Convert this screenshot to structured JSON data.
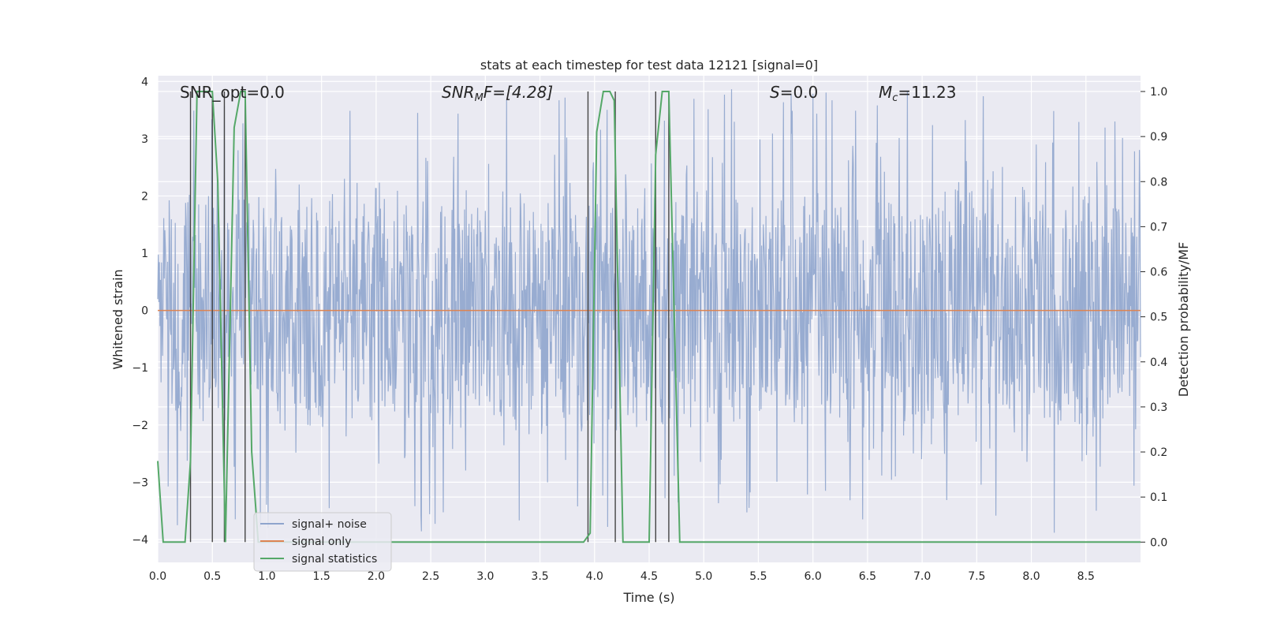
{
  "chart_data": {
    "type": "line",
    "title": "stats at each timestep for test data 12121 [signal=0]",
    "xlabel": "Time (s)",
    "ylabel_left": "Whitened strain",
    "ylabel_right": "Detection probability/MF",
    "xlim": [
      0.0,
      9.0
    ],
    "ylim_left": [
      -4.4,
      4.1
    ],
    "ylim_right": [
      -0.045,
      1.035
    ],
    "xticks": [
      "0.0",
      "0.5",
      "1.0",
      "1.5",
      "2.0",
      "2.5",
      "3.0",
      "3.5",
      "4.0",
      "4.5",
      "5.0",
      "5.5",
      "6.0",
      "6.5",
      "7.0",
      "7.5",
      "8.0",
      "8.5"
    ],
    "yticks_left": [
      "4",
      "3",
      "2",
      "1",
      "0",
      "−1",
      "−2",
      "−3",
      "−4"
    ],
    "yticks_right": [
      "1.0",
      "0.9",
      "0.8",
      "0.7",
      "0.6",
      "0.5",
      "0.4",
      "0.3",
      "0.2",
      "0.1",
      "0.0"
    ],
    "grid": true,
    "legend_position": "lower-left",
    "annotations": {
      "snr_opt": "SNR_opt=0.0",
      "snr_mf_base": "SNR",
      "snr_mf_sub": "M",
      "snr_mf_rest": "F=[4.28]",
      "s_var": "S",
      "s_rest": "=0.0",
      "mc_var": "M",
      "mc_sub": "c",
      "mc_rest": "=11.23"
    },
    "series": [
      {
        "name": "signal+ noise",
        "color": "#8fa5cd",
        "description": "dense whitened strain trace, approx. ±1.7 typical with spikes to ±3.9",
        "envelope": {
          "typical": 1.7,
          "max": 3.9,
          "min": -3.9
        }
      },
      {
        "name": "signal only",
        "color": "#dd8452",
        "x": [
          0.0,
          9.0
        ],
        "y": [
          0.0,
          0.0
        ]
      },
      {
        "name": "signal statistics",
        "color": "#55a868",
        "axis": "right",
        "x": [
          0.0,
          0.05,
          0.25,
          0.3,
          0.36,
          0.5,
          0.55,
          0.62,
          0.7,
          0.76,
          0.8,
          0.86,
          0.92,
          1.0,
          2.0,
          3.0,
          3.9,
          3.96,
          4.02,
          4.08,
          4.14,
          4.18,
          4.26,
          4.3,
          4.5,
          4.56,
          4.62,
          4.68,
          4.78,
          4.83,
          6.0,
          9.0
        ],
        "y": [
          0.18,
          0.0,
          0.0,
          0.18,
          1.0,
          1.0,
          0.8,
          0.0,
          0.92,
          1.0,
          1.0,
          0.2,
          0.0,
          0.0,
          0.0,
          0.0,
          0.0,
          0.02,
          0.91,
          1.0,
          1.0,
          0.98,
          0.0,
          0.0,
          0.0,
          0.86,
          1.0,
          1.0,
          0.0,
          0.0,
          0.0,
          0.0
        ]
      }
    ],
    "vlines": [
      0.3,
      0.5,
      0.61,
      0.8,
      3.94,
      4.19,
      4.56,
      4.68
    ]
  }
}
